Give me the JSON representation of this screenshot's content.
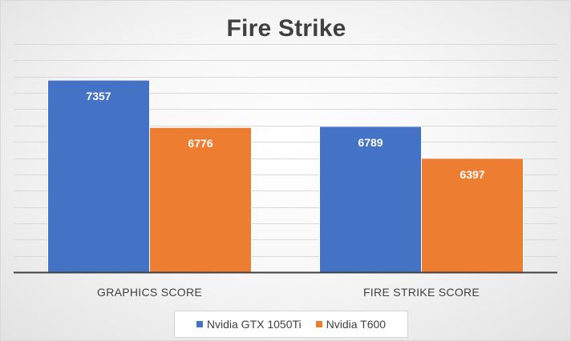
{
  "chart_data": {
    "type": "bar",
    "title": "Fire Strike",
    "categories": [
      "GRAPHICS SCORE",
      "FIRE STRIKE SCORE"
    ],
    "series": [
      {
        "name": "Nvidia GTX 1050Ti",
        "values": [
          7357,
          6789
        ],
        "color": "#4472C4"
      },
      {
        "name": "Nvidia T600",
        "values": [
          6776,
          6397
        ],
        "color": "#ED7D31"
      }
    ],
    "ylim": [
      5000,
      7800
    ],
    "ytick_step": 200,
    "show_y_tick_labels": false,
    "grid": true,
    "legend_position": "bottom",
    "data_labels": "inside-top",
    "axis_color": "#404040",
    "grid_color": "#d9d9d9"
  }
}
